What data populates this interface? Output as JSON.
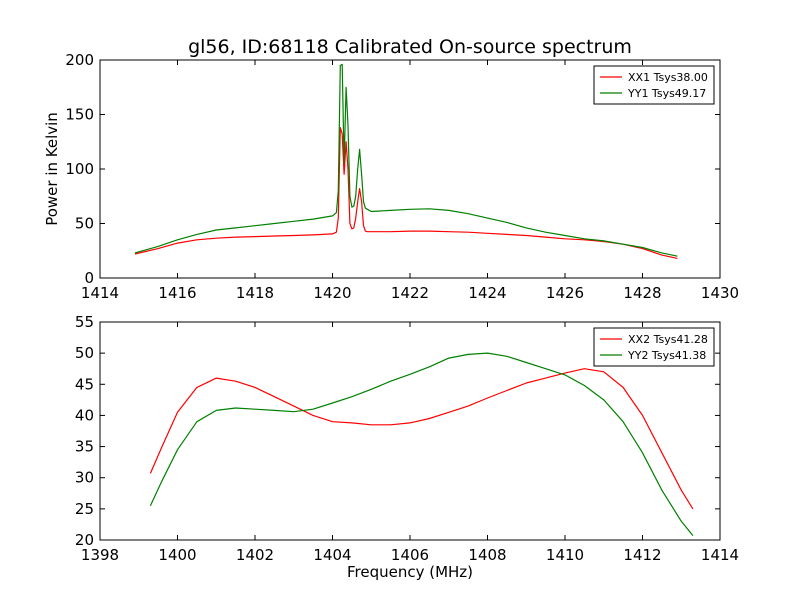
{
  "figure": {
    "title": "gl56, ID:68118 Calibrated On-source spectrum"
  },
  "chart_data": [
    {
      "type": "line",
      "title": "gl56, ID:68118 Calibrated On-source spectrum",
      "xlabel": "",
      "ylabel": "Power in Kelvin",
      "xlim": [
        1414,
        1430
      ],
      "ylim": [
        0,
        200
      ],
      "xticks": [
        1414,
        1416,
        1418,
        1420,
        1422,
        1424,
        1426,
        1428,
        1430
      ],
      "yticks": [
        0,
        50,
        100,
        150,
        200
      ],
      "grid": false,
      "legend": "top-right",
      "series": [
        {
          "name": "XX1 Tsys38.00",
          "color": "#ff0000",
          "x": [
            1414.9,
            1415.5,
            1416.0,
            1416.5,
            1417.0,
            1417.5,
            1418.0,
            1418.5,
            1419.0,
            1419.5,
            1420.0,
            1420.1,
            1420.15,
            1420.2,
            1420.25,
            1420.3,
            1420.35,
            1420.4,
            1420.45,
            1420.5,
            1420.55,
            1420.6,
            1420.65,
            1420.7,
            1420.75,
            1420.8,
            1420.85,
            1420.9,
            1421.0,
            1421.5,
            1422.0,
            1422.5,
            1423.0,
            1423.5,
            1424.0,
            1424.5,
            1425.0,
            1425.5,
            1426.0,
            1426.5,
            1427.0,
            1427.5,
            1428.0,
            1428.5,
            1428.9
          ],
          "values": [
            22,
            27,
            32,
            35,
            36.5,
            37.5,
            38,
            38.5,
            39,
            39.5,
            40.5,
            42,
            55,
            138,
            132,
            95,
            125,
            100,
            50,
            45,
            46,
            55,
            70,
            82,
            70,
            48,
            43,
            42.5,
            42.5,
            42.5,
            43,
            43,
            42.5,
            42,
            41,
            40,
            39,
            37.5,
            36,
            35,
            33.5,
            31,
            27,
            21,
            18
          ]
        },
        {
          "name": "YY1 Tsys49.17",
          "color": "#008000",
          "x": [
            1414.9,
            1415.5,
            1416.0,
            1416.5,
            1417.0,
            1417.5,
            1418.0,
            1418.5,
            1419.0,
            1419.5,
            1420.0,
            1420.1,
            1420.15,
            1420.2,
            1420.25,
            1420.3,
            1420.35,
            1420.4,
            1420.45,
            1420.5,
            1420.55,
            1420.6,
            1420.65,
            1420.7,
            1420.75,
            1420.8,
            1420.85,
            1420.9,
            1421.0,
            1421.5,
            1422.0,
            1422.5,
            1423.0,
            1423.5,
            1424.0,
            1424.5,
            1425.0,
            1425.5,
            1426.0,
            1426.5,
            1427.0,
            1427.5,
            1428.0,
            1428.5,
            1428.9
          ],
          "values": [
            23,
            29,
            35,
            40,
            44,
            46,
            48,
            50,
            52,
            54,
            57,
            60,
            80,
            195,
            196,
            105,
            175,
            140,
            75,
            65,
            66,
            75,
            100,
            118,
            95,
            70,
            64,
            63,
            61,
            62,
            63,
            63.5,
            62,
            59,
            55,
            51,
            46,
            42,
            39,
            36,
            34,
            31,
            28,
            23,
            20
          ]
        }
      ]
    },
    {
      "type": "line",
      "title": "",
      "xlabel": "Frequency (MHz)",
      "ylabel": "",
      "xlim": [
        1398,
        1414
      ],
      "ylim": [
        20,
        55
      ],
      "xticks": [
        1398,
        1400,
        1402,
        1404,
        1406,
        1408,
        1410,
        1412,
        1414
      ],
      "yticks": [
        20,
        25,
        30,
        35,
        40,
        45,
        50,
        55
      ],
      "grid": false,
      "legend": "top-right",
      "series": [
        {
          "name": "XX2 Tsys41.28",
          "color": "#ff0000",
          "x": [
            1399.3,
            1399.6,
            1400.0,
            1400.5,
            1401.0,
            1401.5,
            1402.0,
            1402.5,
            1403.0,
            1403.5,
            1404.0,
            1404.5,
            1405.0,
            1405.5,
            1406.0,
            1406.5,
            1407.0,
            1407.5,
            1408.0,
            1408.5,
            1409.0,
            1409.5,
            1410.0,
            1410.5,
            1411.0,
            1411.5,
            1412.0,
            1412.5,
            1413.0,
            1413.3
          ],
          "values": [
            30.7,
            35,
            40.5,
            44.5,
            46,
            45.5,
            44.5,
            43,
            41.5,
            40,
            39,
            38.8,
            38.5,
            38.5,
            38.8,
            39.5,
            40.5,
            41.5,
            42.8,
            44,
            45.2,
            46,
            46.8,
            47.5,
            47,
            44.5,
            40,
            34,
            28,
            25
          ]
        },
        {
          "name": "YY2 Tsys41.38",
          "color": "#008000",
          "x": [
            1399.3,
            1399.6,
            1400.0,
            1400.5,
            1401.0,
            1401.5,
            1402.0,
            1402.5,
            1403.0,
            1403.5,
            1404.0,
            1404.5,
            1405.0,
            1405.5,
            1406.0,
            1406.5,
            1407.0,
            1407.5,
            1408.0,
            1408.5,
            1409.0,
            1409.5,
            1410.0,
            1410.5,
            1411.0,
            1411.5,
            1412.0,
            1412.5,
            1413.0,
            1413.3
          ],
          "values": [
            25.5,
            29.5,
            34.5,
            39,
            40.8,
            41.2,
            41,
            40.8,
            40.6,
            41,
            42,
            43,
            44.2,
            45.5,
            46.6,
            47.8,
            49.2,
            49.8,
            50,
            49.5,
            48.5,
            47.5,
            46.5,
            44.8,
            42.5,
            39,
            34,
            28,
            23,
            20.7
          ]
        }
      ]
    }
  ]
}
